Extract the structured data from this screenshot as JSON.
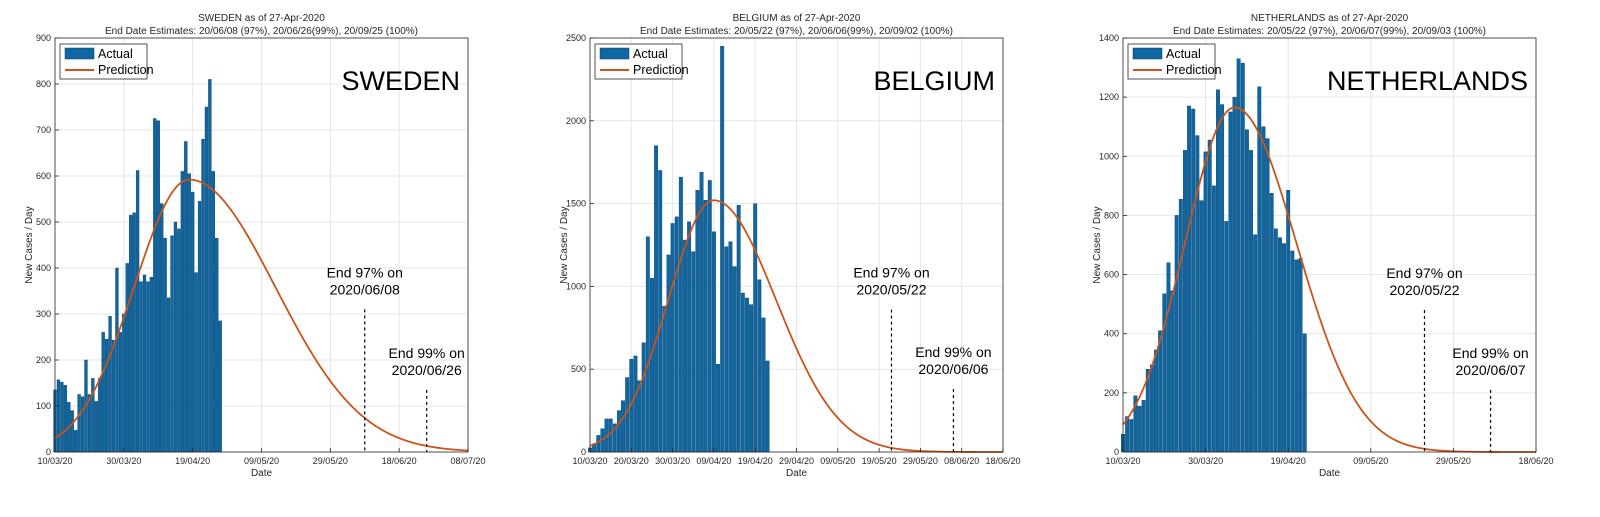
{
  "colors": {
    "bar": "#0e67a3",
    "bar_edge": "#0a3d62",
    "prediction": "#cc5319",
    "grid": "#e6e6e6",
    "axis": "#262626"
  },
  "chart_data": [
    {
      "type": "bar",
      "title": "SWEDEN as of 27-Apr-2020",
      "subtitle": "End Date Estimates: 20/06/08 (97%), 20/06/26(99%), 20/09/25 (100%)",
      "country_label": "SWEDEN",
      "xlabel": "Date",
      "ylabel": "New Cases / Day",
      "x_start": "2020-03-10",
      "x_end": "2020-07-08",
      "ylim": [
        0,
        900
      ],
      "yticks": [
        0,
        100,
        200,
        300,
        400,
        500,
        600,
        700,
        800,
        900
      ],
      "xtick_labels": [
        "10/03/20",
        "30/03/20",
        "19/04/20",
        "09/05/20",
        "29/05/20",
        "18/06/20",
        "08/07/20"
      ],
      "grid": true,
      "legend": {
        "location": "top-left",
        "entries": [
          "Actual",
          "Prediction"
        ]
      },
      "series": [
        {
          "name": "Actual",
          "kind": "bar",
          "values": [
            135,
            157,
            152,
            145,
            108,
            90,
            47,
            125,
            120,
            200,
            125,
            160,
            110,
            160,
            260,
            245,
            295,
            243,
            400,
            260,
            300,
            410,
            515,
            520,
            612,
            370,
            385,
            370,
            380,
            725,
            720,
            540,
            465,
            335,
            470,
            500,
            485,
            610,
            675,
            605,
            565,
            390,
            545,
            680,
            750,
            810,
            610,
            465,
            285
          ]
        },
        {
          "name": "Prediction",
          "kind": "curve",
          "peak_date": "2020-04-18",
          "peak_value": 592,
          "sigma_left_days": 16,
          "sigma_right_days": 25
        }
      ],
      "annotations": [
        {
          "date": "2020-06-08",
          "line1": "End 97% on",
          "line2": "2020/06/08",
          "line_top": 310
        },
        {
          "date": "2020-06-26",
          "line1": "End 99% on",
          "line2": "2020/06/26",
          "line_top": 135
        }
      ]
    },
    {
      "type": "bar",
      "title": "BELGIUM as of 27-Apr-2020",
      "subtitle": "End Date Estimates: 20/05/22 (97%), 20/06/06(99%), 20/09/02 (100%)",
      "country_label": "BELGIUM",
      "xlabel": "Date",
      "ylabel": "New Cases / Day",
      "x_start": "2020-03-10",
      "x_end": "2020-06-18",
      "ylim": [
        0,
        2500
      ],
      "yticks": [
        0,
        500,
        1000,
        1500,
        2000,
        2500
      ],
      "xtick_labels": [
        "10/03/20",
        "20/03/20",
        "30/03/20",
        "09/04/20",
        "19/04/20",
        "29/04/20",
        "09/05/20",
        "19/05/20",
        "29/05/20",
        "08/06/20",
        "18/06/20"
      ],
      "grid": true,
      "legend": {
        "location": "top-left",
        "entries": [
          "Actual",
          "Prediction"
        ]
      },
      "series": [
        {
          "name": "Actual",
          "kind": "bar",
          "values": [
            25,
            50,
            100,
            140,
            200,
            200,
            170,
            250,
            310,
            450,
            560,
            580,
            430,
            660,
            1300,
            1050,
            1850,
            1700,
            880,
            1190,
            1380,
            1420,
            1660,
            1280,
            1390,
            1210,
            1580,
            1690,
            1520,
            1640,
            1330,
            530,
            2450,
            1240,
            1270,
            1120,
            1490,
            960,
            930,
            890,
            1500,
            1040,
            810,
            550
          ]
        },
        {
          "name": "Prediction",
          "kind": "curve",
          "peak_date": "2020-04-09",
          "peak_value": 1520,
          "sigma_left_days": 11,
          "sigma_right_days": 15
        }
      ],
      "annotations": [
        {
          "date": "2020-05-22",
          "line1": "End 97% on",
          "line2": "2020/05/22",
          "line_top": 860
        },
        {
          "date": "2020-06-06",
          "line1": "End 99% on",
          "line2": "2020/06/06",
          "line_top": 380
        }
      ]
    },
    {
      "type": "bar",
      "title": "NETHERLANDS as of 27-Apr-2020",
      "subtitle": "End Date Estimates: 20/05/22 (97%), 20/06/07(99%), 20/09/03 (100%)",
      "country_label": "NETHERLANDS",
      "xlabel": "Date",
      "ylabel": "New Cases / Day",
      "x_start": "2020-03-10",
      "x_end": "2020-06-18",
      "ylim": [
        0,
        1400
      ],
      "yticks": [
        0,
        200,
        400,
        600,
        800,
        1000,
        1200,
        1400
      ],
      "xtick_labels": [
        "10/03/20",
        "30/03/20",
        "19/04/20",
        "09/05/20",
        "29/05/20",
        "18/06/20"
      ],
      "grid": true,
      "legend": {
        "location": "top-left",
        "entries": [
          "Actual",
          "Prediction"
        ]
      },
      "series": [
        {
          "name": "Actual",
          "kind": "bar",
          "values": [
            60,
            120,
            110,
            190,
            155,
            175,
            280,
            295,
            345,
            410,
            535,
            640,
            545,
            800,
            855,
            1020,
            1170,
            1160,
            1070,
            850,
            1015,
            1055,
            900,
            1225,
            1175,
            780,
            1150,
            1200,
            1330,
            1315,
            1090,
            1020,
            735,
            1235,
            1100,
            1060,
            875,
            755,
            725,
            705,
            885,
            680,
            650,
            655,
            400
          ]
        },
        {
          "name": "Prediction",
          "kind": "curve",
          "peak_date": "2020-04-06",
          "peak_value": 1165,
          "sigma_left_days": 12,
          "sigma_right_days": 15
        }
      ],
      "annotations": [
        {
          "date": "2020-05-22",
          "line1": "End 97% on",
          "line2": "2020/05/22",
          "line_top": 480
        },
        {
          "date": "2020-06-07",
          "line1": "End 99% on",
          "line2": "2020/06/07",
          "line_top": 210
        }
      ]
    }
  ]
}
